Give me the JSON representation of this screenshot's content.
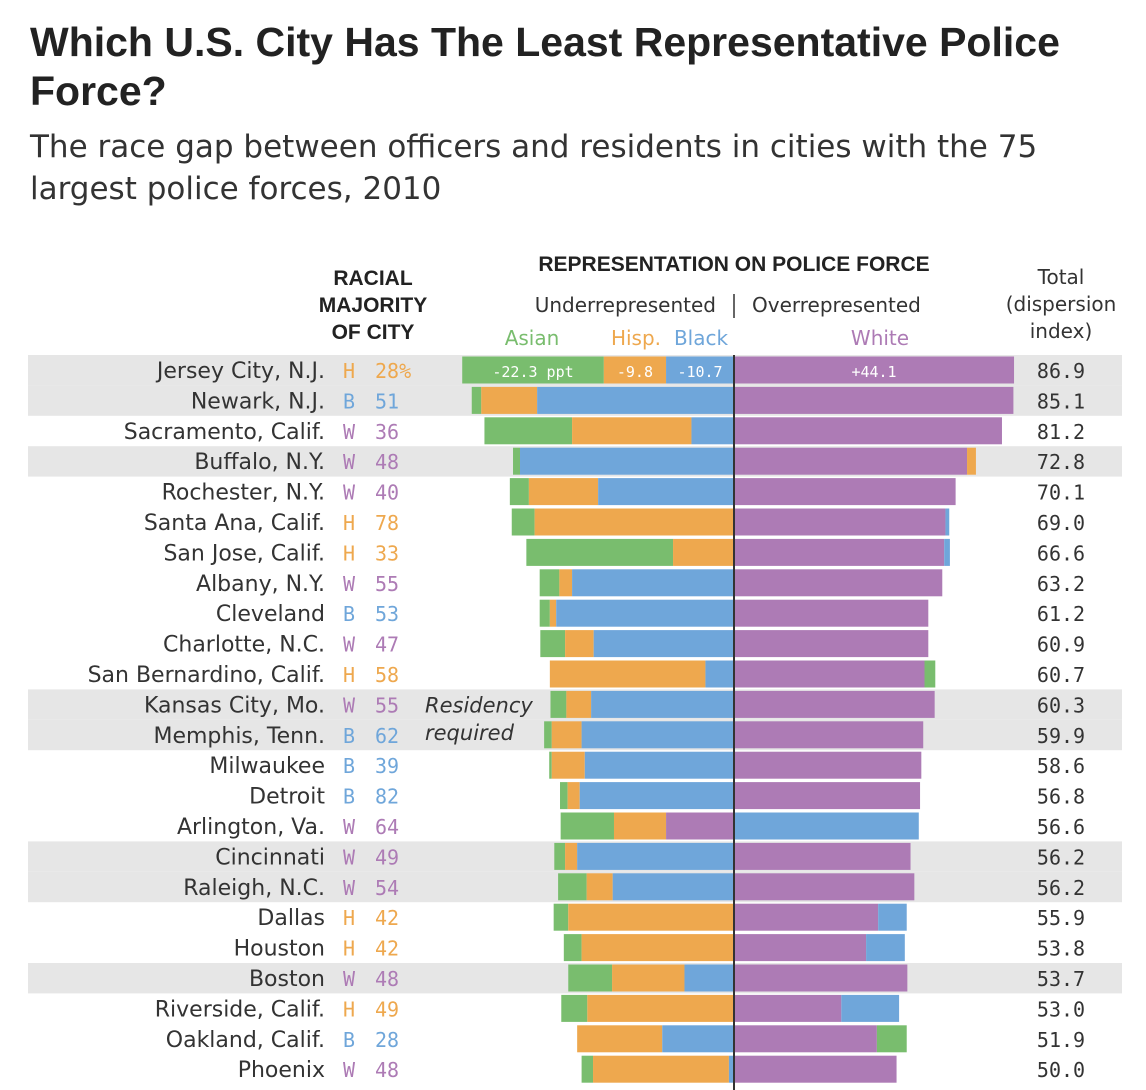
{
  "title": "Which U.S. City Has The Least Representative Police Force?",
  "subtitle": "The race gap between officers and residents in cities with the 75 largest police forces, 2010",
  "headers": {
    "majority": [
      "RACIAL",
      "MAJORITY",
      "OF CITY"
    ],
    "representation": "REPRESENTATION ON POLICE FORCE",
    "under": "Underrepresented",
    "over": "Overrepresented",
    "asian": "Asian",
    "hisp": "Hisp.",
    "black": "Black",
    "white": "White",
    "total": [
      "Total",
      "(dispersion",
      "index)"
    ]
  },
  "annotation": [
    "Residency",
    "required"
  ],
  "colors": {
    "asian": "#79bd6e",
    "hispanic": "#eea84e",
    "black": "#6fa6da",
    "white": "#ad7bb5",
    "highlight_row": "#e6e6e6",
    "axis": "#333333",
    "text": "#333333"
  },
  "chart_data": {
    "type": "bar",
    "orientation": "horizontal diverging stacked",
    "unit": "percentage points",
    "series": [
      {
        "name": "Asian",
        "color": "#79bd6e"
      },
      {
        "name": "Hisp.",
        "color": "#eea84e"
      },
      {
        "name": "Black",
        "color": "#6fa6da"
      },
      {
        "name": "White",
        "color": "#ad7bb5"
      }
    ],
    "rows": [
      {
        "city": "Jersey City, N.J.",
        "majority": "H",
        "pct": "28%",
        "total": "86.9",
        "highlight": true,
        "under": [
          {
            "race": "Asian",
            "value": 22.3,
            "label": "-22.3 ppt"
          },
          {
            "race": "Hisp.",
            "value": 9.8,
            "label": "-9.8"
          },
          {
            "race": "Black",
            "value": 10.7,
            "label": "-10.7"
          }
        ],
        "over": [
          {
            "race": "White",
            "value": 44.1,
            "label": "+44.1"
          }
        ]
      },
      {
        "city": "Newark, N.J.",
        "majority": "B",
        "pct": "51",
        "total": "85.1",
        "highlight": true,
        "under": [
          {
            "race": "Asian",
            "value": 1.5
          },
          {
            "race": "Hisp.",
            "value": 8.8
          },
          {
            "race": "Black",
            "value": 31.0
          }
        ],
        "over": [
          {
            "race": "White",
            "value": 44.0
          }
        ]
      },
      {
        "city": "Sacramento, Calif.",
        "majority": "W",
        "pct": "36",
        "total": "81.2",
        "highlight": false,
        "under": [
          {
            "race": "Asian",
            "value": 13.8
          },
          {
            "race": "Hisp.",
            "value": 18.8
          },
          {
            "race": "Black",
            "value": 6.7
          }
        ],
        "over": [
          {
            "race": "White",
            "value": 42.2
          }
        ]
      },
      {
        "city": "Buffalo, N.Y.",
        "majority": "W",
        "pct": "48",
        "total": "72.8",
        "highlight": true,
        "under": [
          {
            "race": "Asian",
            "value": 1.1
          },
          {
            "race": "Black",
            "value": 33.7
          }
        ],
        "over": [
          {
            "race": "White",
            "value": 36.7
          },
          {
            "race": "Hisp.",
            "value": 1.4
          }
        ]
      },
      {
        "city": "Rochester, N.Y.",
        "majority": "W",
        "pct": "40",
        "total": "70.1",
        "highlight": false,
        "under": [
          {
            "race": "Asian",
            "value": 3.0
          },
          {
            "race": "Hisp.",
            "value": 10.9
          },
          {
            "race": "Black",
            "value": 21.4
          }
        ],
        "over": [
          {
            "race": "White",
            "value": 34.9
          }
        ]
      },
      {
        "city": "Santa Ana, Calif.",
        "majority": "H",
        "pct": "78",
        "total": "69.0",
        "highlight": false,
        "under": [
          {
            "race": "Asian",
            "value": 3.6
          },
          {
            "race": "Hisp.",
            "value": 31.4
          }
        ],
        "over": [
          {
            "race": "White",
            "value": 33.3
          },
          {
            "race": "Black",
            "value": 0.6
          }
        ]
      },
      {
        "city": "San Jose, Calif.",
        "majority": "H",
        "pct": "33",
        "total": "66.6",
        "highlight": false,
        "under": [
          {
            "race": "Asian",
            "value": 23.1
          },
          {
            "race": "Hisp.",
            "value": 9.6
          }
        ],
        "over": [
          {
            "race": "White",
            "value": 33.1
          },
          {
            "race": "Black",
            "value": 0.9
          }
        ]
      },
      {
        "city": "Albany, N.Y.",
        "majority": "W",
        "pct": "55",
        "total": "63.2",
        "highlight": false,
        "under": [
          {
            "race": "Asian",
            "value": 3.1
          },
          {
            "race": "Hisp.",
            "value": 2.0
          },
          {
            "race": "Black",
            "value": 25.5
          }
        ],
        "over": [
          {
            "race": "White",
            "value": 32.8
          }
        ]
      },
      {
        "city": "Cleveland",
        "majority": "B",
        "pct": "53",
        "total": "61.2",
        "highlight": false,
        "under": [
          {
            "race": "Asian",
            "value": 1.6
          },
          {
            "race": "Hisp.",
            "value": 1.0
          },
          {
            "race": "Black",
            "value": 28.0
          }
        ],
        "over": [
          {
            "race": "White",
            "value": 30.6
          }
        ]
      },
      {
        "city": "Charlotte, N.C.",
        "majority": "W",
        "pct": "47",
        "total": "60.9",
        "highlight": false,
        "under": [
          {
            "race": "Asian",
            "value": 3.9
          },
          {
            "race": "Hisp.",
            "value": 4.5
          },
          {
            "race": "Black",
            "value": 22.1
          }
        ],
        "over": [
          {
            "race": "White",
            "value": 30.6
          }
        ]
      },
      {
        "city": "San Bernardino, Calif.",
        "majority": "H",
        "pct": "58",
        "total": "60.7",
        "highlight": false,
        "under": [
          {
            "race": "Hisp.",
            "value": 24.5
          },
          {
            "race": "Black",
            "value": 4.5
          }
        ],
        "over": [
          {
            "race": "White",
            "value": 30.0
          },
          {
            "race": "Asian",
            "value": 1.7
          }
        ]
      },
      {
        "city": "Kansas City, Mo.",
        "majority": "W",
        "pct": "55",
        "total": "60.3",
        "highlight": true,
        "under": [
          {
            "race": "Asian",
            "value": 2.5
          },
          {
            "race": "Hisp.",
            "value": 3.9
          },
          {
            "race": "Black",
            "value": 22.5
          }
        ],
        "over": [
          {
            "race": "White",
            "value": 31.6
          }
        ]
      },
      {
        "city": "Memphis, Tenn.",
        "majority": "B",
        "pct": "62",
        "total": "59.9",
        "highlight": true,
        "under": [
          {
            "race": "Asian",
            "value": 1.2
          },
          {
            "race": "Hisp.",
            "value": 4.7
          },
          {
            "race": "Black",
            "value": 24.0
          }
        ],
        "over": [
          {
            "race": "White",
            "value": 29.8
          }
        ]
      },
      {
        "city": "Milwaukee",
        "majority": "B",
        "pct": "39",
        "total": "58.6",
        "highlight": false,
        "under": [
          {
            "race": "Asian",
            "value": 0.4
          },
          {
            "race": "Hisp.",
            "value": 5.2
          },
          {
            "race": "Black",
            "value": 23.5
          }
        ],
        "over": [
          {
            "race": "White",
            "value": 29.5
          }
        ]
      },
      {
        "city": "Detroit",
        "majority": "B",
        "pct": "82",
        "total": "56.8",
        "highlight": false,
        "under": [
          {
            "race": "Asian",
            "value": 1.2
          },
          {
            "race": "Hisp.",
            "value": 1.9
          },
          {
            "race": "Black",
            "value": 24.3
          }
        ],
        "over": [
          {
            "race": "White",
            "value": 29.3
          }
        ]
      },
      {
        "city": "Arlington, Va.",
        "majority": "W",
        "pct": "64",
        "total": "56.6",
        "highlight": false,
        "under": [
          {
            "race": "Asian",
            "value": 8.4
          },
          {
            "race": "Hisp.",
            "value": 8.2
          },
          {
            "race": "White",
            "value": 10.7
          }
        ],
        "over": [
          {
            "race": "Black",
            "value": 29.1
          }
        ]
      },
      {
        "city": "Cincinnati",
        "majority": "W",
        "pct": "49",
        "total": "56.2",
        "highlight": true,
        "under": [
          {
            "race": "Asian",
            "value": 1.7
          },
          {
            "race": "Hisp.",
            "value": 1.9
          },
          {
            "race": "Black",
            "value": 24.7
          }
        ],
        "over": [
          {
            "race": "White",
            "value": 27.8
          }
        ]
      },
      {
        "city": "Raleigh, N.C.",
        "majority": "W",
        "pct": "54",
        "total": "56.2",
        "highlight": true,
        "under": [
          {
            "race": "Asian",
            "value": 4.5
          },
          {
            "race": "Hisp.",
            "value": 4.1
          },
          {
            "race": "Black",
            "value": 19.1
          }
        ],
        "over": [
          {
            "race": "White",
            "value": 28.4
          }
        ]
      },
      {
        "city": "Dallas",
        "majority": "H",
        "pct": "42",
        "total": "55.9",
        "highlight": false,
        "under": [
          {
            "race": "Asian",
            "value": 2.3
          },
          {
            "race": "Hisp.",
            "value": 26.1
          }
        ],
        "over": [
          {
            "race": "White",
            "value": 22.7
          },
          {
            "race": "Black",
            "value": 4.5
          }
        ]
      },
      {
        "city": "Houston",
        "majority": "H",
        "pct": "42",
        "total": "53.8",
        "highlight": false,
        "under": [
          {
            "race": "Asian",
            "value": 2.8
          },
          {
            "race": "Hisp.",
            "value": 24.0
          }
        ],
        "over": [
          {
            "race": "White",
            "value": 20.8
          },
          {
            "race": "Black",
            "value": 6.1
          }
        ]
      },
      {
        "city": "Boston",
        "majority": "W",
        "pct": "48",
        "total": "53.7",
        "highlight": true,
        "under": [
          {
            "race": "Asian",
            "value": 6.9
          },
          {
            "race": "Hisp.",
            "value": 11.4
          },
          {
            "race": "Black",
            "value": 7.8
          }
        ],
        "over": [
          {
            "race": "White",
            "value": 27.3
          }
        ]
      },
      {
        "city": "Riverside, Calif.",
        "majority": "H",
        "pct": "49",
        "total": "53.0",
        "highlight": false,
        "under": [
          {
            "race": "Asian",
            "value": 4.1
          },
          {
            "race": "Hisp.",
            "value": 23.1
          }
        ],
        "over": [
          {
            "race": "White",
            "value": 16.9
          },
          {
            "race": "Black",
            "value": 9.1
          }
        ]
      },
      {
        "city": "Oakland, Calif.",
        "majority": "B",
        "pct": "28",
        "total": "51.9",
        "highlight": false,
        "under": [
          {
            "race": "Hisp.",
            "value": 13.4
          },
          {
            "race": "Black",
            "value": 11.3
          }
        ],
        "over": [
          {
            "race": "White",
            "value": 22.5
          },
          {
            "race": "Asian",
            "value": 4.7
          }
        ]
      },
      {
        "city": "Phoenix",
        "majority": "W",
        "pct": "48",
        "total": "50.0",
        "highlight": false,
        "under": [
          {
            "race": "Asian",
            "value": 1.8
          },
          {
            "race": "Hisp.",
            "value": 21.4
          },
          {
            "race": "Black",
            "value": 0.8
          }
        ],
        "over": [
          {
            "race": "White",
            "value": 25.6
          }
        ]
      }
    ]
  }
}
